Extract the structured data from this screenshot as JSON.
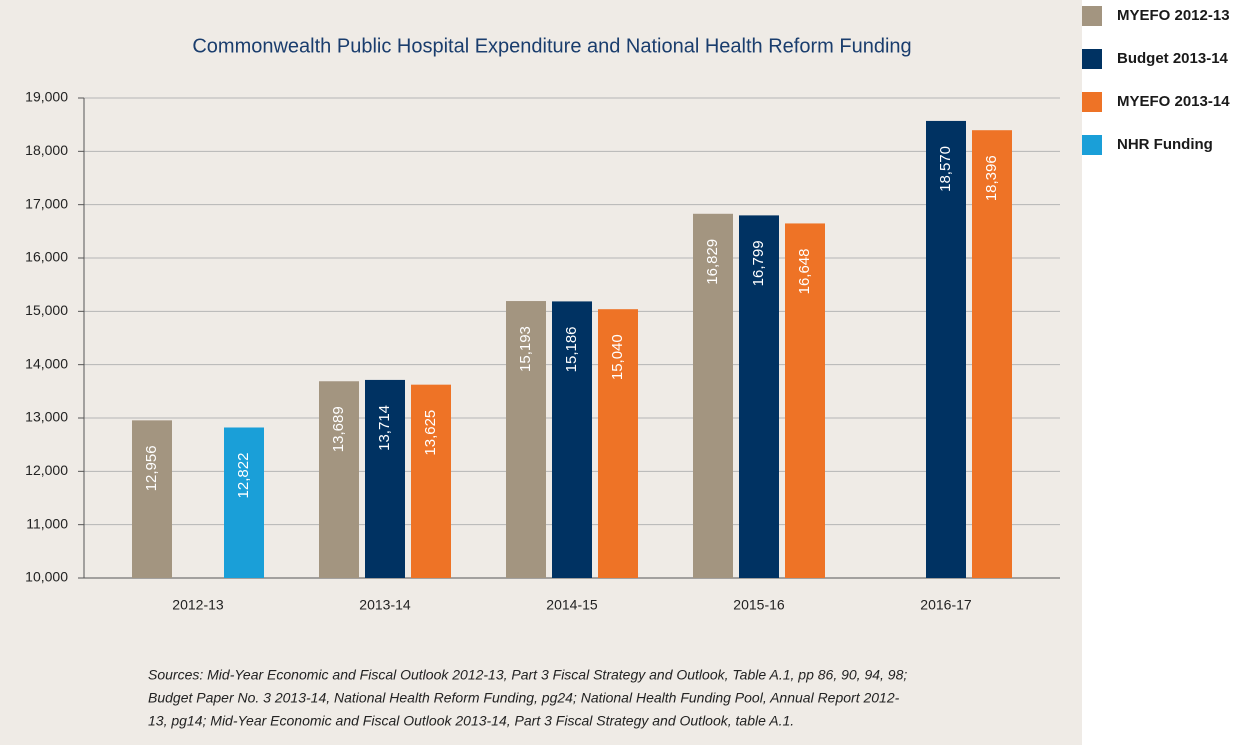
{
  "chart_data": {
    "type": "bar",
    "title": "Commonwealth Public Hospital Expenditure and National Health Reform Funding",
    "categories": [
      "2012-13",
      "2013-14",
      "2014-15",
      "2015-16",
      "2016-17"
    ],
    "series": [
      {
        "name": "MYEFO 2012-13",
        "color": "#a39580",
        "values": [
          12956,
          13689,
          15193,
          16829,
          null
        ],
        "value_labels": [
          "12,956",
          "13,689",
          "15,193",
          "16,829",
          null
        ]
      },
      {
        "name": "Budget 2013-14",
        "color": "#003262",
        "values": [
          null,
          13714,
          15186,
          16799,
          18570
        ],
        "value_labels": [
          null,
          "13,714",
          "15,186",
          "16,799",
          "18,570"
        ]
      },
      {
        "name": "MYEFO 2013-14",
        "color": "#ee7326",
        "values": [
          null,
          13625,
          15040,
          16648,
          18396
        ],
        "value_labels": [
          null,
          "13,625",
          "15,040",
          "16,648",
          "18,396"
        ]
      },
      {
        "name": "NHR Funding",
        "color": "#1a9fd8",
        "values": [
          12822,
          null,
          null,
          null,
          null
        ],
        "value_labels": [
          "12,822",
          null,
          null,
          null,
          null
        ]
      }
    ],
    "ylim": [
      10000,
      19000
    ],
    "yticks": [
      {
        "value": 10000,
        "label": "10,000"
      },
      {
        "value": 11000,
        "label": "11,000"
      },
      {
        "value": 12000,
        "label": "12,000"
      },
      {
        "value": 13000,
        "label": "13,000"
      },
      {
        "value": 14000,
        "label": "14,000"
      },
      {
        "value": 15000,
        "label": "15,000"
      },
      {
        "value": 16000,
        "label": "16,000"
      },
      {
        "value": 17000,
        "label": "17,000"
      },
      {
        "value": 18000,
        "label": "18,000"
      },
      {
        "value": 19000,
        "label": "19,000"
      }
    ],
    "grid": true,
    "legend": "right",
    "sources": [
      "Sources: Mid-Year Economic and Fiscal Outlook 2012-13, Part 3 Fiscal Strategy and Outlook, Table A.1, pp 86, 90, 94, 98;",
      "Budget Paper No. 3 2013-14, National Health Reform Funding, pg24; National Health Funding Pool, Annual Report 2012-",
      "13, pg14; Mid-Year Economic and Fiscal Outlook 2013-14, Part 3 Fiscal Strategy and Outlook, table A.1."
    ]
  }
}
